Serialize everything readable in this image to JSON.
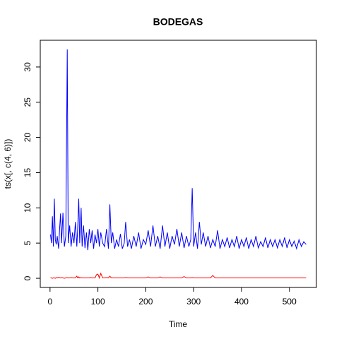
{
  "chart_data": {
    "type": "line",
    "title": "BODEGAS",
    "xlabel": "Time",
    "ylabel": "ts(x[, c(4, 6)])",
    "x": [
      1,
      3,
      5,
      7,
      9,
      11,
      13,
      15,
      18,
      20,
      22,
      24,
      27,
      30,
      33,
      36,
      38,
      41,
      44,
      47,
      50,
      53,
      56,
      58,
      60,
      62,
      65,
      67,
      70,
      73,
      76,
      79,
      82,
      85,
      88,
      91,
      94,
      97,
      100,
      103,
      106,
      110,
      114,
      118,
      122,
      125,
      128,
      131,
      135,
      139,
      143,
      147,
      151,
      155,
      158,
      162,
      166,
      170,
      175,
      180,
      185,
      190,
      195,
      200,
      205,
      210,
      215,
      220,
      225,
      230,
      235,
      240,
      245,
      250,
      255,
      260,
      265,
      270,
      275,
      280,
      285,
      290,
      294,
      297,
      300,
      304,
      308,
      312,
      316,
      320,
      325,
      330,
      335,
      340,
      345,
      350,
      355,
      360,
      365,
      370,
      375,
      380,
      385,
      390,
      395,
      400,
      405,
      410,
      415,
      420,
      425,
      430,
      435,
      440,
      445,
      450,
      455,
      460,
      465,
      470,
      475,
      480,
      485,
      490,
      495,
      500,
      505,
      510,
      515,
      520,
      525,
      530,
      535
    ],
    "series": [
      {
        "color": "#0000ff",
        "values": [
          6.2,
          5,
          8.8,
          4.5,
          11.3,
          5.5,
          4.8,
          6,
          4.2,
          7,
          9.2,
          5,
          9.3,
          4.5,
          6,
          32.5,
          5,
          7.5,
          4.5,
          6.5,
          5,
          8,
          4.5,
          7.5,
          11.3,
          5,
          10,
          4.5,
          7.5,
          4.3,
          6.5,
          4,
          7,
          5,
          6.8,
          4.2,
          6.2,
          5,
          7,
          4.5,
          6.5,
          5,
          4.5,
          7,
          4.2,
          10.5,
          5,
          6.5,
          4.2,
          5.5,
          4.5,
          6.3,
          4.2,
          5,
          8,
          4.5,
          5.5,
          4.2,
          6,
          4.5,
          6.5,
          4.2,
          5.5,
          4.8,
          6.8,
          4.5,
          7.5,
          4.5,
          6,
          4.2,
          7.5,
          4.5,
          6.5,
          4.2,
          6,
          4.8,
          7,
          4.5,
          6.5,
          4.3,
          6,
          4.5,
          5.5,
          12.8,
          4.5,
          6.5,
          4.2,
          8,
          4.8,
          6.5,
          4.5,
          6,
          4.3,
          5.5,
          4.5,
          6.8,
          4.2,
          5.5,
          4.5,
          5.8,
          4.3,
          5.5,
          4.5,
          6,
          4.2,
          5.5,
          4.5,
          5.8,
          4.2,
          5.5,
          4.5,
          6,
          4.3,
          5.2,
          4.5,
          5.8,
          4.3,
          5.5,
          4.5,
          5.5,
          4.3,
          5.5,
          4.5,
          5.8,
          4.3,
          5.5,
          4.5,
          5.3,
          4.2,
          5.5,
          4.5,
          5.2,
          4.8
        ]
      },
      {
        "color": "#ff0000",
        "values": [
          0.05,
          0.05,
          0,
          0.05,
          0.05,
          0,
          0.1,
          0.05,
          0.15,
          0.05,
          0.05,
          0.1,
          0.05,
          0,
          0.05,
          0.1,
          0.05,
          0.05,
          0.1,
          0.05,
          0.05,
          0.05,
          0.3,
          0.05,
          0.2,
          0.05,
          0.1,
          0.05,
          0.05,
          0.05,
          0.05,
          0.05,
          0.05,
          0.1,
          0.05,
          0.05,
          0.05,
          0.5,
          0.6,
          0.05,
          0.7,
          0.05,
          0.05,
          0.1,
          0.05,
          0.3,
          0.05,
          0.05,
          0.05,
          0.05,
          0.05,
          0.05,
          0.05,
          0.05,
          0.1,
          0.05,
          0.05,
          0.05,
          0.05,
          0.05,
          0.05,
          0.05,
          0.05,
          0.05,
          0.2,
          0.05,
          0.05,
          0.05,
          0.05,
          0.2,
          0.05,
          0.05,
          0.05,
          0.05,
          0.05,
          0.05,
          0.05,
          0.05,
          0.05,
          0.25,
          0.05,
          0.05,
          0.05,
          0.1,
          0.05,
          0.05,
          0.05,
          0.05,
          0.05,
          0.05,
          0.05,
          0.05,
          0.05,
          0.4,
          0.05,
          0.05,
          0.05,
          0.05,
          0.05,
          0.05,
          0.05,
          0.05,
          0.05,
          0.05,
          0.05,
          0.05,
          0.05,
          0.05,
          0.05,
          0.05,
          0.05,
          0.05,
          0.05,
          0.05,
          0.05,
          0.05,
          0.05,
          0.05,
          0.05,
          0.05,
          0.05,
          0.05,
          0.05,
          0.05,
          0.05,
          0.05,
          0.05,
          0.05,
          0.05,
          0.05,
          0.05,
          0.05,
          0.05
        ]
      }
    ],
    "xlim": [
      -20.4,
      556.4
    ],
    "xticks": [
      0,
      100,
      200,
      300,
      400,
      500
    ],
    "ylim": [
      -1.3,
      33.8
    ],
    "yticks": [
      0,
      5,
      10,
      15,
      20,
      25,
      30
    ]
  }
}
